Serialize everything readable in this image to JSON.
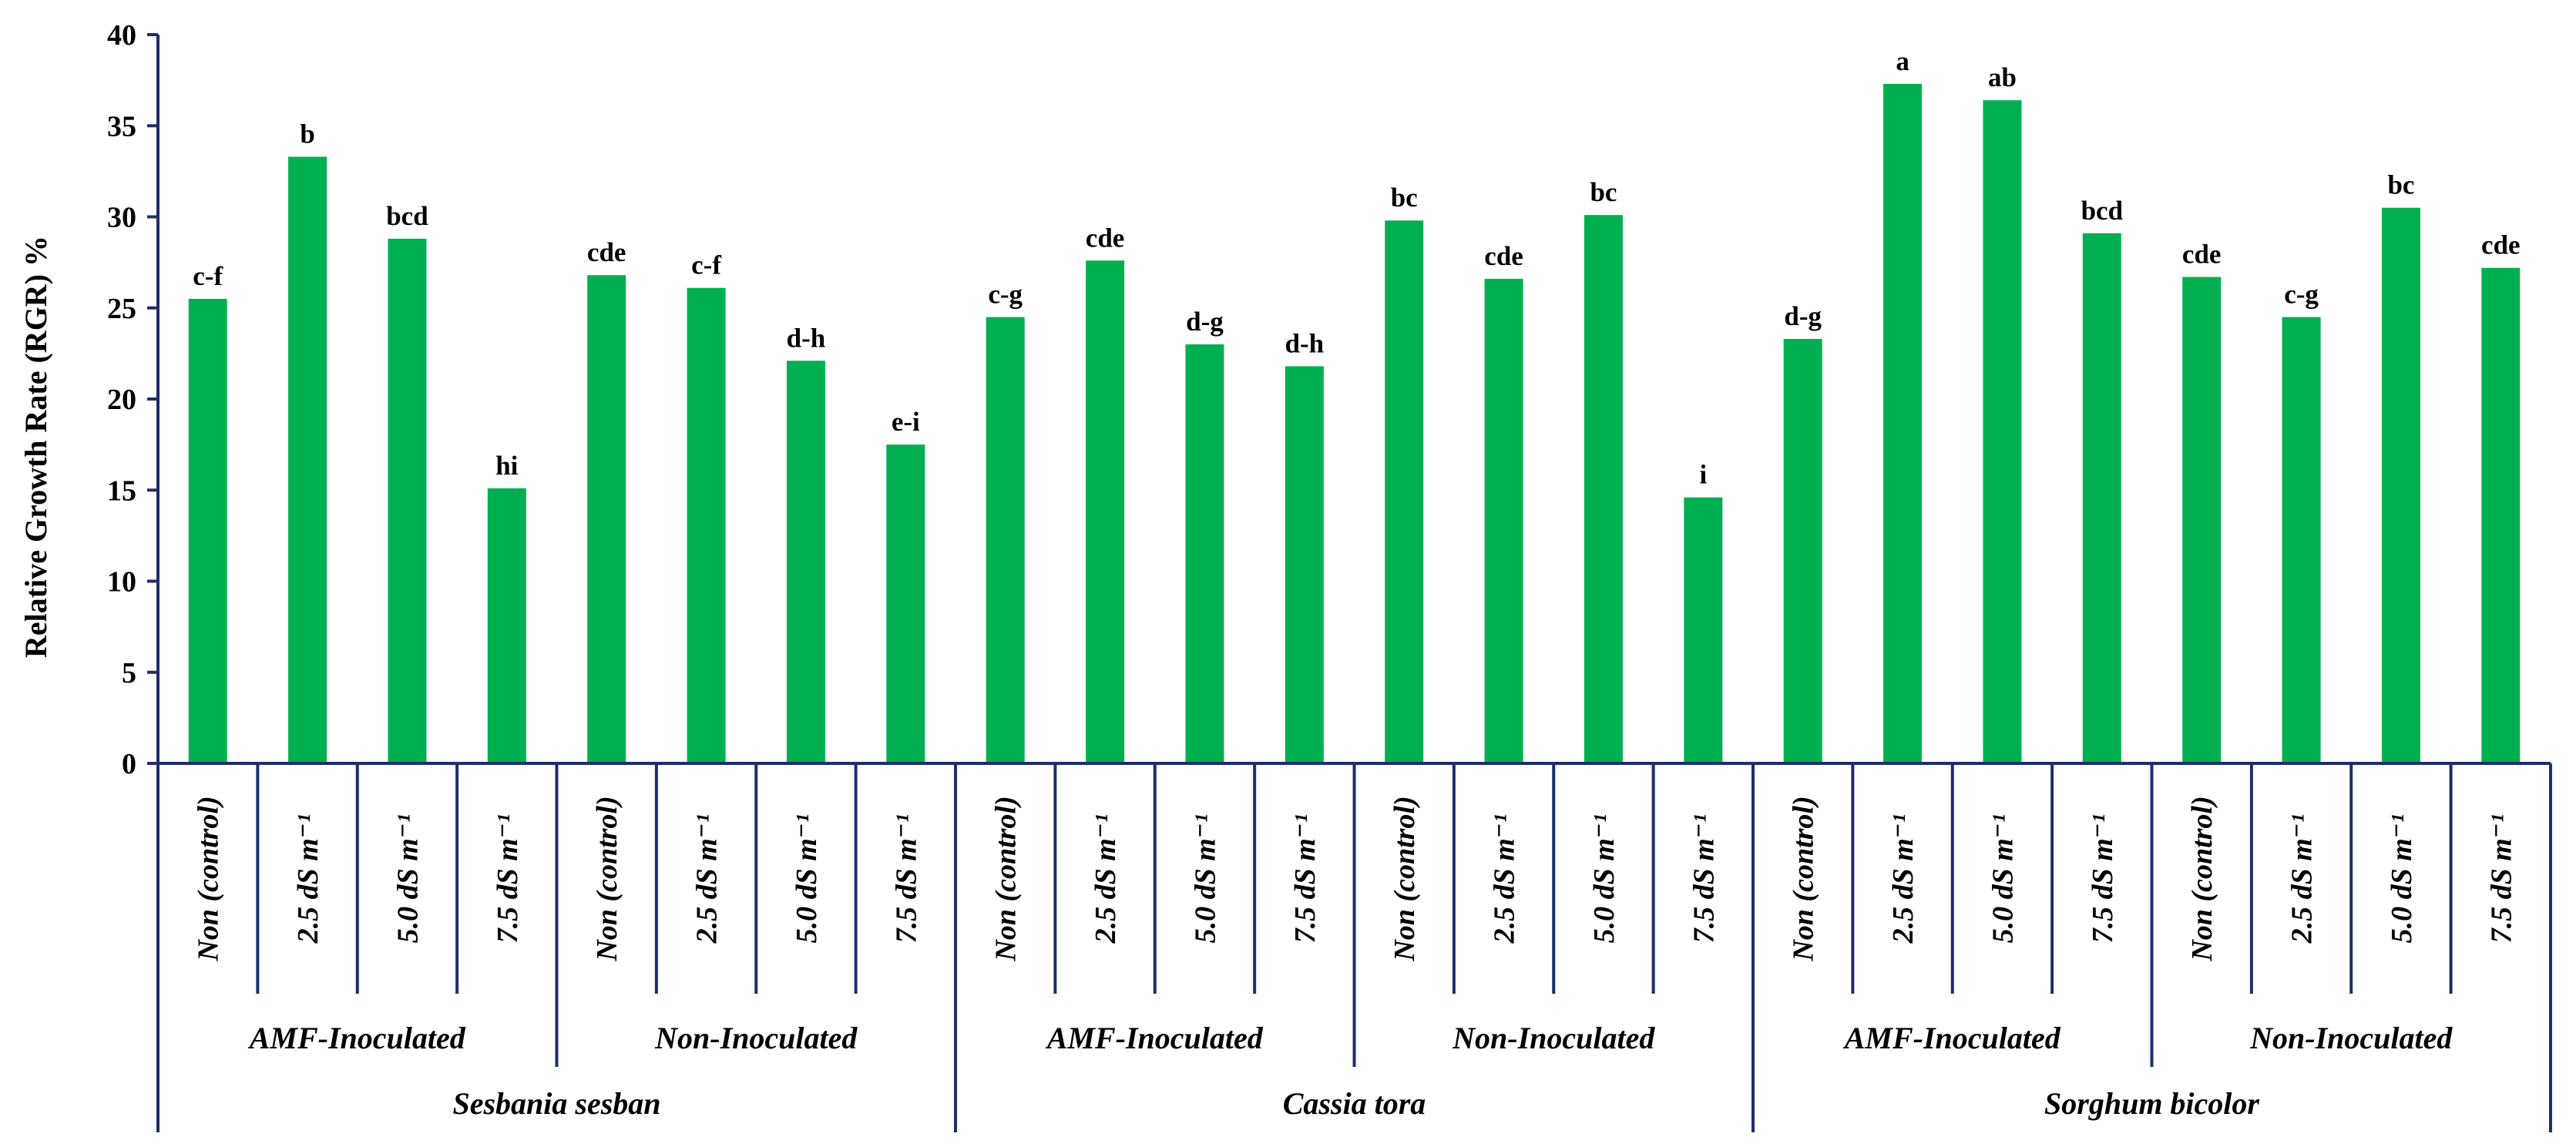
{
  "chart_data": {
    "type": "bar",
    "ylabel": "Relative Growth Rate (RGR)  %",
    "ylim": [
      0,
      40
    ],
    "yticks": [
      0,
      5,
      10,
      15,
      20,
      25,
      30,
      35,
      40
    ],
    "grid": false,
    "legend": "none",
    "bar_color": "#00B050",
    "axis_color": "#1F2D6B",
    "categories": [
      "Non (control)",
      "2.5 dS m⁻¹",
      "5.0 dS m⁻¹",
      "7.5 dS m⁻¹",
      "Non (control)",
      "2.5 dS m⁻¹",
      "5.0 dS m⁻¹",
      "7.5 dS m⁻¹",
      "Non (control)",
      "2.5 dS m⁻¹",
      "5.0 dS m⁻¹",
      "7.5 dS m⁻¹",
      "Non (control)",
      "2.5 dS m⁻¹",
      "5.0 dS m⁻¹",
      "7.5 dS m⁻¹",
      "Non (control)",
      "2.5 dS m⁻¹",
      "5.0 dS m⁻¹",
      "7.5 dS m⁻¹",
      "Non (control)",
      "2.5 dS m⁻¹",
      "5.0 dS m⁻¹",
      "7.5 dS m⁻¹"
    ],
    "values": [
      25.5,
      33.3,
      28.8,
      15.1,
      26.8,
      26.1,
      22.1,
      17.5,
      24.5,
      27.6,
      23.0,
      21.8,
      29.8,
      26.6,
      30.1,
      14.6,
      23.3,
      37.3,
      36.4,
      29.1,
      26.7,
      24.5,
      30.5,
      27.2
    ],
    "data_labels": [
      "c-f",
      "b",
      "bcd",
      "hi",
      "cde",
      "c-f",
      "d-h",
      "e-i",
      "c-g",
      "cde",
      "d-g",
      "d-h",
      "bc",
      "cde",
      "bc",
      "i",
      "d-g",
      "a",
      "ab",
      "bcd",
      "cde",
      "c-g",
      "bc",
      "cde"
    ],
    "inoculation_groups": [
      "AMF-Inoculated",
      "Non-Inoculated",
      "AMF-Inoculated",
      "Non-Inoculated",
      "AMF-Inoculated",
      "Non-Inoculated"
    ],
    "species_groups": [
      "Sesbania sesban",
      "Cassia tora",
      "Sorghum bicolor"
    ]
  }
}
